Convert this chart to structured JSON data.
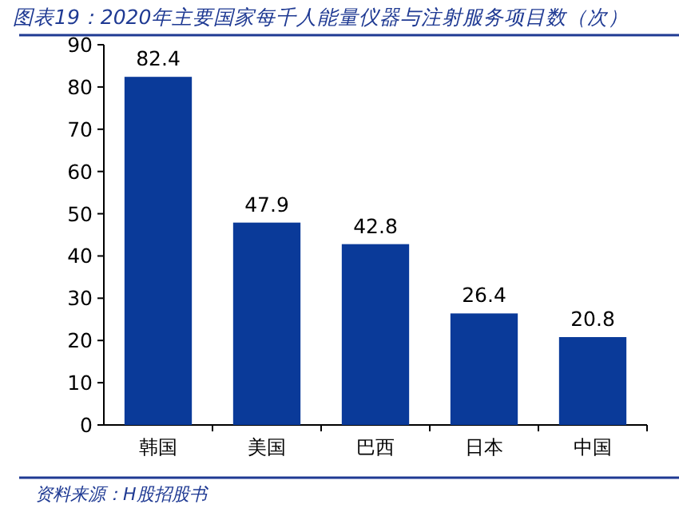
{
  "chart_data": {
    "type": "bar",
    "title": "图表19：2020年主要国家每千人能量仪器与注射服务项目数（次）",
    "categories": [
      "韩国",
      "美国",
      "巴西",
      "日本",
      "中国"
    ],
    "values": [
      82.4,
      47.9,
      42.8,
      26.4,
      20.8
    ],
    "color": "#0a3a99",
    "ylim": [
      0,
      90
    ],
    "yticks": [
      0,
      10,
      20,
      30,
      40,
      50,
      60,
      70,
      80,
      90
    ],
    "grid": false,
    "data_labels": true,
    "annotations": [
      "资料来源：H股招股书"
    ]
  }
}
